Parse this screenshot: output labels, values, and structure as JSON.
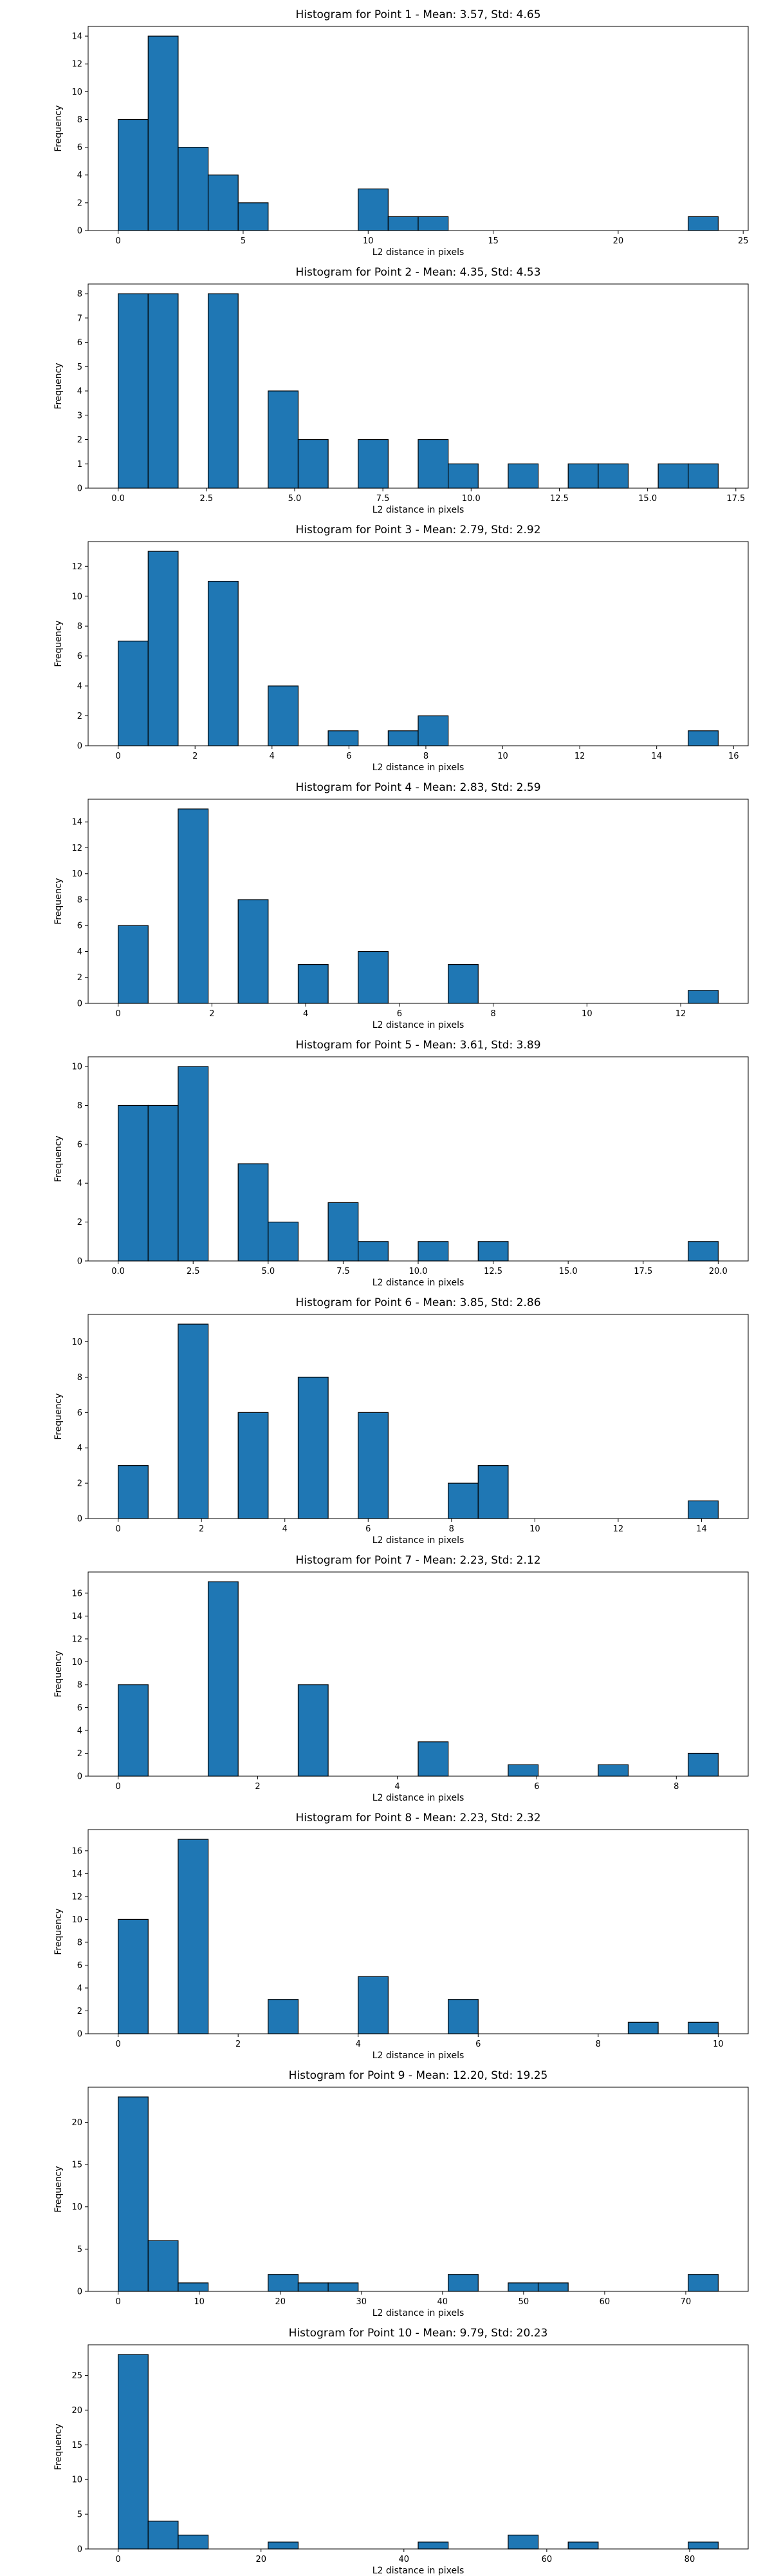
{
  "chart_data": [
    {
      "type": "bar",
      "title": "Histogram for Point 1 - Mean: 3.57, Std: 4.65",
      "xlabel": "L2 distance in pixels",
      "ylabel": "Frequency",
      "xlim": [
        -1.2,
        25.2
      ],
      "ylim": [
        0,
        14.7
      ],
      "xticks": [
        0,
        5,
        10,
        15,
        20,
        25
      ],
      "xtick_labels": [
        "0",
        "5",
        "10",
        "15",
        "20",
        "25"
      ],
      "yticks": [
        0,
        2,
        4,
        6,
        8,
        10,
        12,
        14
      ],
      "ytick_labels": [
        "0",
        "2",
        "4",
        "6",
        "8",
        "10",
        "12",
        "14"
      ],
      "bin_edges": [
        0,
        1.2,
        2.4,
        3.6,
        4.8,
        6.0,
        7.2,
        8.4,
        9.6,
        10.8,
        12.0,
        13.2,
        14.4,
        15.6,
        16.8,
        18.0,
        19.2,
        20.4,
        21.6,
        22.8,
        24.0
      ],
      "values": [
        8,
        14,
        6,
        4,
        2,
        0,
        0,
        0,
        3,
        1,
        1,
        0,
        0,
        0,
        0,
        0,
        0,
        0,
        0,
        1
      ],
      "grid": false,
      "colors": {
        "bar": "#1f77b4",
        "edge": "#000000"
      }
    },
    {
      "type": "bar",
      "title": "Histogram for Point 2 - Mean: 4.35, Std: 4.53",
      "xlabel": "L2 distance in pixels",
      "ylabel": "Frequency",
      "xlim": [
        -0.85,
        17.85
      ],
      "ylim": [
        0,
        8.4
      ],
      "xticks": [
        0,
        2.5,
        5,
        7.5,
        10,
        12.5,
        15,
        17.5
      ],
      "xtick_labels": [
        "0.0",
        "2.5",
        "5.0",
        "7.5",
        "10.0",
        "12.5",
        "15.0",
        "17.5"
      ],
      "yticks": [
        0,
        1,
        2,
        3,
        4,
        5,
        6,
        7,
        8
      ],
      "ytick_labels": [
        "0",
        "1",
        "2",
        "3",
        "4",
        "5",
        "6",
        "7",
        "8"
      ],
      "bin_edges": [
        0,
        0.85,
        1.7,
        2.55,
        3.4,
        4.25,
        5.1,
        5.95,
        6.8,
        7.65,
        8.5,
        9.35,
        10.2,
        11.05,
        11.9,
        12.75,
        13.6,
        14.45,
        15.3,
        16.15,
        17.0
      ],
      "values": [
        8,
        8,
        0,
        8,
        0,
        4,
        2,
        0,
        2,
        0,
        2,
        1,
        0,
        1,
        0,
        1,
        1,
        0,
        1,
        1
      ],
      "grid": false,
      "colors": {
        "bar": "#1f77b4",
        "edge": "#000000"
      }
    },
    {
      "type": "bar",
      "title": "Histogram for Point 3 - Mean: 2.79, Std: 2.92",
      "xlabel": "L2 distance in pixels",
      "ylabel": "Frequency",
      "xlim": [
        -0.78,
        16.38
      ],
      "ylim": [
        0,
        13.65
      ],
      "xticks": [
        0,
        2,
        4,
        6,
        8,
        10,
        12,
        14,
        16
      ],
      "xtick_labels": [
        "0",
        "2",
        "4",
        "6",
        "8",
        "10",
        "12",
        "14",
        "16"
      ],
      "yticks": [
        0,
        2,
        4,
        6,
        8,
        10,
        12
      ],
      "ytick_labels": [
        "0",
        "2",
        "4",
        "6",
        "8",
        "10",
        "12"
      ],
      "bin_edges": [
        0,
        0.78,
        1.56,
        2.34,
        3.12,
        3.9,
        4.68,
        5.46,
        6.24,
        7.02,
        7.8,
        8.58,
        9.36,
        10.14,
        10.92,
        11.7,
        12.48,
        13.26,
        14.04,
        14.82,
        15.6
      ],
      "values": [
        7,
        13,
        0,
        11,
        0,
        4,
        0,
        1,
        0,
        1,
        2,
        0,
        0,
        0,
        0,
        0,
        0,
        0,
        0,
        1
      ],
      "grid": false,
      "colors": {
        "bar": "#1f77b4",
        "edge": "#000000"
      }
    },
    {
      "type": "bar",
      "title": "Histogram for Point 4 - Mean: 2.83, Std: 2.59",
      "xlabel": "L2 distance in pixels",
      "ylabel": "Frequency",
      "xlim": [
        -0.64,
        13.44
      ],
      "ylim": [
        0,
        15.75
      ],
      "xticks": [
        0,
        2,
        4,
        6,
        8,
        10,
        12
      ],
      "xtick_labels": [
        "0",
        "2",
        "4",
        "6",
        "8",
        "10",
        "12"
      ],
      "yticks": [
        0,
        2,
        4,
        6,
        8,
        10,
        12,
        14
      ],
      "ytick_labels": [
        "0",
        "2",
        "4",
        "6",
        "8",
        "10",
        "12",
        "14"
      ],
      "bin_edges": [
        0,
        0.64,
        1.28,
        1.92,
        2.56,
        3.2,
        3.84,
        4.48,
        5.12,
        5.76,
        6.4,
        7.04,
        7.68,
        8.32,
        8.96,
        9.6,
        10.24,
        10.88,
        11.52,
        12.16,
        12.8
      ],
      "values": [
        6,
        0,
        15,
        0,
        8,
        0,
        3,
        0,
        4,
        0,
        0,
        3,
        0,
        0,
        0,
        0,
        0,
        0,
        0,
        1
      ],
      "grid": false,
      "colors": {
        "bar": "#1f77b4",
        "edge": "#000000"
      }
    },
    {
      "type": "bar",
      "title": "Histogram for Point 5 - Mean: 3.61, Std: 3.89",
      "xlabel": "L2 distance in pixels",
      "ylabel": "Frequency",
      "xlim": [
        -1.0,
        21.0
      ],
      "ylim": [
        0,
        10.5
      ],
      "xticks": [
        0,
        2.5,
        5,
        7.5,
        10,
        12.5,
        15,
        17.5,
        20
      ],
      "xtick_labels": [
        "0.0",
        "2.5",
        "5.0",
        "7.5",
        "10.0",
        "12.5",
        "15.0",
        "17.5",
        "20.0"
      ],
      "yticks": [
        0,
        2,
        4,
        6,
        8,
        10
      ],
      "ytick_labels": [
        "0",
        "2",
        "4",
        "6",
        "8",
        "10"
      ],
      "bin_edges": [
        0,
        1,
        2,
        3,
        4,
        5,
        6,
        7,
        8,
        9,
        10,
        11,
        12,
        13,
        14,
        15,
        16,
        17,
        18,
        19,
        20
      ],
      "values": [
        8,
        8,
        10,
        0,
        5,
        2,
        0,
        3,
        1,
        0,
        1,
        0,
        1,
        0,
        0,
        0,
        0,
        0,
        0,
        1
      ],
      "grid": false,
      "colors": {
        "bar": "#1f77b4",
        "edge": "#000000"
      }
    },
    {
      "type": "bar",
      "title": "Histogram for Point 6 - Mean: 3.85, Std: 2.86",
      "xlabel": "L2 distance in pixels",
      "ylabel": "Frequency",
      "xlim": [
        -0.72,
        15.12
      ],
      "ylim": [
        0,
        11.55
      ],
      "xticks": [
        0,
        2,
        4,
        6,
        8,
        10,
        12,
        14
      ],
      "xtick_labels": [
        "0",
        "2",
        "4",
        "6",
        "8",
        "10",
        "12",
        "14"
      ],
      "yticks": [
        0,
        2,
        4,
        6,
        8,
        10
      ],
      "ytick_labels": [
        "0",
        "2",
        "4",
        "6",
        "8",
        "10"
      ],
      "bin_edges": [
        0,
        0.72,
        1.44,
        2.16,
        2.88,
        3.6,
        4.32,
        5.04,
        5.76,
        6.48,
        7.2,
        7.92,
        8.64,
        9.36,
        10.08,
        10.8,
        11.52,
        12.24,
        12.96,
        13.68,
        14.4
      ],
      "values": [
        3,
        0,
        11,
        0,
        6,
        0,
        8,
        0,
        6,
        0,
        0,
        2,
        3,
        0,
        0,
        0,
        0,
        0,
        0,
        1
      ],
      "grid": false,
      "colors": {
        "bar": "#1f77b4",
        "edge": "#000000"
      }
    },
    {
      "type": "bar",
      "title": "Histogram for Point 7 - Mean: 2.23, Std: 2.12",
      "xlabel": "L2 distance in pixels",
      "ylabel": "Frequency",
      "xlim": [
        -0.43,
        9.03
      ],
      "ylim": [
        0,
        17.85
      ],
      "xticks": [
        0,
        2,
        4,
        6,
        8
      ],
      "xtick_labels": [
        "0",
        "2",
        "4",
        "6",
        "8"
      ],
      "yticks": [
        0,
        2,
        4,
        6,
        8,
        10,
        12,
        14,
        16
      ],
      "ytick_labels": [
        "0",
        "2",
        "4",
        "6",
        "8",
        "10",
        "12",
        "14",
        "16"
      ],
      "bin_edges": [
        0,
        0.43,
        0.86,
        1.29,
        1.72,
        2.15,
        2.58,
        3.01,
        3.44,
        3.87,
        4.3,
        4.73,
        5.16,
        5.59,
        6.02,
        6.45,
        6.88,
        7.31,
        7.74,
        8.17,
        8.6
      ],
      "values": [
        8,
        0,
        0,
        17,
        0,
        0,
        8,
        0,
        0,
        0,
        3,
        0,
        0,
        1,
        0,
        0,
        1,
        0,
        0,
        2
      ],
      "grid": false,
      "colors": {
        "bar": "#1f77b4",
        "edge": "#000000"
      }
    },
    {
      "type": "bar",
      "title": "Histogram for Point 8 - Mean: 2.23, Std: 2.32",
      "xlabel": "L2 distance in pixels",
      "ylabel": "Frequency",
      "xlim": [
        -0.5,
        10.5
      ],
      "ylim": [
        0,
        17.85
      ],
      "xticks": [
        0,
        2,
        4,
        6,
        8,
        10
      ],
      "xtick_labels": [
        "0",
        "2",
        "4",
        "6",
        "8",
        "10"
      ],
      "yticks": [
        0,
        2,
        4,
        6,
        8,
        10,
        12,
        14,
        16
      ],
      "ytick_labels": [
        "0",
        "2",
        "4",
        "6",
        "8",
        "10",
        "12",
        "14",
        "16"
      ],
      "bin_edges": [
        0,
        0.5,
        1.0,
        1.5,
        2.0,
        2.5,
        3.0,
        3.5,
        4.0,
        4.5,
        5.0,
        5.5,
        6.0,
        6.5,
        7.0,
        7.5,
        8.0,
        8.5,
        9.0,
        9.5,
        10.0
      ],
      "values": [
        10,
        0,
        17,
        0,
        0,
        3,
        0,
        0,
        5,
        0,
        0,
        3,
        0,
        0,
        0,
        0,
        0,
        1,
        0,
        1
      ],
      "grid": false,
      "colors": {
        "bar": "#1f77b4",
        "edge": "#000000"
      }
    },
    {
      "type": "bar",
      "title": "Histogram for Point 9 - Mean: 12.20, Std: 19.25",
      "xlabel": "L2 distance in pixels",
      "ylabel": "Frequency",
      "xlim": [
        -3.7,
        77.7
      ],
      "ylim": [
        0,
        24.15
      ],
      "xticks": [
        0,
        10,
        20,
        30,
        40,
        50,
        60,
        70
      ],
      "xtick_labels": [
        "0",
        "10",
        "20",
        "30",
        "40",
        "50",
        "60",
        "70"
      ],
      "yticks": [
        0,
        5,
        10,
        15,
        20
      ],
      "ytick_labels": [
        "0",
        "5",
        "10",
        "15",
        "20"
      ],
      "bin_edges": [
        0,
        3.7,
        7.4,
        11.1,
        14.8,
        18.5,
        22.2,
        25.9,
        29.6,
        33.3,
        37.0,
        40.7,
        44.4,
        48.1,
        51.8,
        55.5,
        59.2,
        62.9,
        66.6,
        70.3,
        74.0
      ],
      "values": [
        23,
        6,
        1,
        0,
        0,
        2,
        1,
        1,
        0,
        0,
        0,
        2,
        0,
        1,
        1,
        0,
        0,
        0,
        0,
        2
      ],
      "grid": false,
      "colors": {
        "bar": "#1f77b4",
        "edge": "#000000"
      }
    },
    {
      "type": "bar",
      "title": "Histogram for Point 10 - Mean: 9.79, Std: 20.23",
      "xlabel": "L2 distance in pixels",
      "ylabel": "Frequency",
      "xlim": [
        -4.2,
        88.2
      ],
      "ylim": [
        0,
        29.4
      ],
      "xticks": [
        0,
        20,
        40,
        60,
        80
      ],
      "xtick_labels": [
        "0",
        "20",
        "40",
        "60",
        "80"
      ],
      "yticks": [
        0,
        5,
        10,
        15,
        20,
        25
      ],
      "ytick_labels": [
        "0",
        "5",
        "10",
        "15",
        "20",
        "25"
      ],
      "bin_edges": [
        0,
        4.2,
        8.4,
        12.6,
        16.8,
        21.0,
        25.2,
        29.4,
        33.6,
        37.8,
        42.0,
        46.2,
        50.4,
        54.6,
        58.8,
        63.0,
        67.2,
        71.4,
        75.6,
        79.8,
        84.0
      ],
      "values": [
        28,
        4,
        2,
        0,
        0,
        1,
        0,
        0,
        0,
        0,
        1,
        0,
        0,
        2,
        0,
        1,
        0,
        0,
        0,
        1
      ],
      "grid": false,
      "colors": {
        "bar": "#1f77b4",
        "edge": "#000000"
      }
    }
  ]
}
